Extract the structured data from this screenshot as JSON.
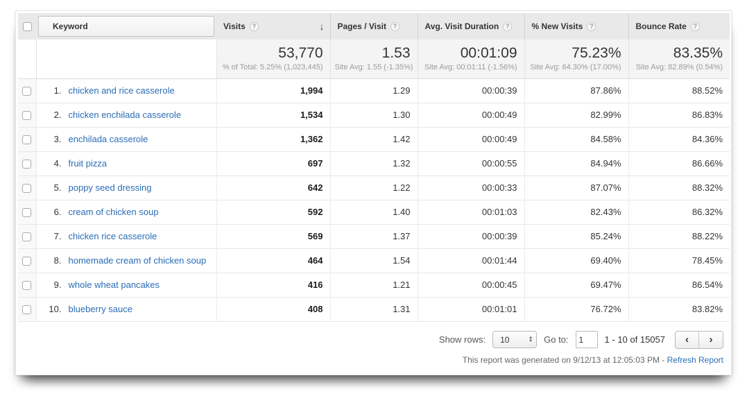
{
  "table": {
    "columns": {
      "keyword": "Keyword",
      "visits": "Visits",
      "pages_per_visit": "Pages / Visit",
      "avg_visit_duration": "Avg. Visit Duration",
      "pct_new_visits": "% New Visits",
      "bounce_rate": "Bounce Rate"
    },
    "sort": {
      "column": "visits",
      "direction": "desc"
    },
    "summary": {
      "visits": {
        "value": "53,770",
        "sub": "% of Total: 5.25% (1,023,445)"
      },
      "pages_per_visit": {
        "value": "1.53",
        "sub": "Site Avg: 1.55 (-1.35%)"
      },
      "avg_visit_duration": {
        "value": "00:01:09",
        "sub": "Site Avg: 00:01:11 (-1.56%)"
      },
      "pct_new_visits": {
        "value": "75.23%",
        "sub": "Site Avg: 64.30% (17.00%)"
      },
      "bounce_rate": {
        "value": "83.35%",
        "sub": "Site Avg: 82.89% (0.54%)"
      }
    },
    "rows": [
      {
        "rank": "1.",
        "keyword": "chicken and rice casserole",
        "visits": "1,994",
        "pages_per_visit": "1.29",
        "avg_visit_duration": "00:00:39",
        "pct_new_visits": "87.86%",
        "bounce_rate": "88.52%"
      },
      {
        "rank": "2.",
        "keyword": "chicken enchilada casserole",
        "visits": "1,534",
        "pages_per_visit": "1.30",
        "avg_visit_duration": "00:00:49",
        "pct_new_visits": "82.99%",
        "bounce_rate": "86.83%"
      },
      {
        "rank": "3.",
        "keyword": "enchilada casserole",
        "visits": "1,362",
        "pages_per_visit": "1.42",
        "avg_visit_duration": "00:00:49",
        "pct_new_visits": "84.58%",
        "bounce_rate": "84.36%"
      },
      {
        "rank": "4.",
        "keyword": "fruit pizza",
        "visits": "697",
        "pages_per_visit": "1.32",
        "avg_visit_duration": "00:00:55",
        "pct_new_visits": "84.94%",
        "bounce_rate": "86.66%"
      },
      {
        "rank": "5.",
        "keyword": "poppy seed dressing",
        "visits": "642",
        "pages_per_visit": "1.22",
        "avg_visit_duration": "00:00:33",
        "pct_new_visits": "87.07%",
        "bounce_rate": "88.32%"
      },
      {
        "rank": "6.",
        "keyword": "cream of chicken soup",
        "visits": "592",
        "pages_per_visit": "1.40",
        "avg_visit_duration": "00:01:03",
        "pct_new_visits": "82.43%",
        "bounce_rate": "86.32%"
      },
      {
        "rank": "7.",
        "keyword": "chicken rice casserole",
        "visits": "569",
        "pages_per_visit": "1.37",
        "avg_visit_duration": "00:00:39",
        "pct_new_visits": "85.24%",
        "bounce_rate": "88.22%"
      },
      {
        "rank": "8.",
        "keyword": "homemade cream of chicken soup",
        "visits": "464",
        "pages_per_visit": "1.54",
        "avg_visit_duration": "00:01:44",
        "pct_new_visits": "69.40%",
        "bounce_rate": "78.45%"
      },
      {
        "rank": "9.",
        "keyword": "whole wheat pancakes",
        "visits": "416",
        "pages_per_visit": "1.21",
        "avg_visit_duration": "00:00:45",
        "pct_new_visits": "69.47%",
        "bounce_rate": "86.54%"
      },
      {
        "rank": "10.",
        "keyword": "blueberry sauce",
        "visits": "408",
        "pages_per_visit": "1.31",
        "avg_visit_duration": "00:01:01",
        "pct_new_visits": "76.72%",
        "bounce_rate": "83.82%"
      }
    ]
  },
  "pagination": {
    "show_rows_label": "Show rows:",
    "show_rows_value": "10",
    "goto_label": "Go to:",
    "goto_value": "1",
    "range_text": "1 - 10 of 15057"
  },
  "footer": {
    "generated_text": "This report was generated on 9/12/13 at 12:05:03 PM - ",
    "refresh_link": "Refresh Report"
  },
  "icons": {
    "help": "?",
    "sort_desc": "↓",
    "stepper_up": "▲",
    "stepper_down": "▼",
    "prev": "‹",
    "next": "›"
  },
  "colors": {
    "link_blue": "#2a6db5",
    "header_bg": "#e9e9e9",
    "summary_bg": "#f4f4f4",
    "row_border": "#e7e7e7"
  }
}
